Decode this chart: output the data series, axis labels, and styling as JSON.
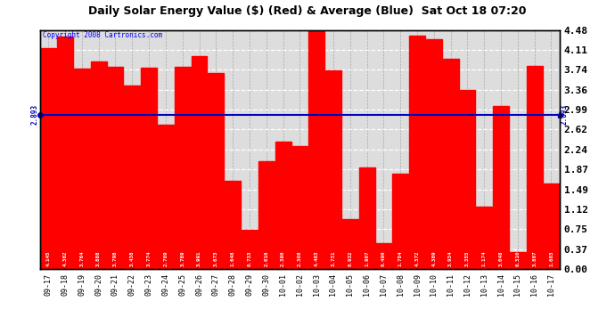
{
  "title": "Daily Solar Energy Value ($) (Red) & Average (Blue)  Sat Oct 18 07:20",
  "copyright": "Copyright 2008 Cartronics.com",
  "average": 2.893,
  "bar_color": "#ff0000",
  "avg_line_color": "#0000bb",
  "background_color": "#ffffff",
  "plot_bg_color": "#dddddd",
  "ylim": [
    0.0,
    4.48
  ],
  "yticks": [
    0.0,
    0.37,
    0.75,
    1.12,
    1.49,
    1.87,
    2.24,
    2.62,
    2.99,
    3.36,
    3.74,
    4.11,
    4.48
  ],
  "categories": [
    "09-17",
    "09-18",
    "09-19",
    "09-20",
    "09-21",
    "09-22",
    "09-23",
    "09-24",
    "09-25",
    "09-26",
    "09-27",
    "09-28",
    "09-29",
    "09-30",
    "10-01",
    "10-02",
    "10-03",
    "10-04",
    "10-05",
    "10-06",
    "10-07",
    "10-08",
    "10-09",
    "10-10",
    "10-11",
    "10-12",
    "10-13",
    "10-14",
    "10-15",
    "10-16",
    "10-17"
  ],
  "values": [
    4.145,
    4.362,
    3.764,
    3.888,
    3.798,
    3.438,
    3.774,
    2.709,
    3.789,
    3.991,
    3.673,
    1.648,
    0.733,
    2.016,
    2.39,
    2.308,
    4.483,
    3.731,
    0.932,
    1.907,
    0.49,
    1.784,
    4.372,
    4.309,
    3.934,
    3.355,
    1.174,
    3.048,
    0.31,
    3.807,
    1.603
  ]
}
